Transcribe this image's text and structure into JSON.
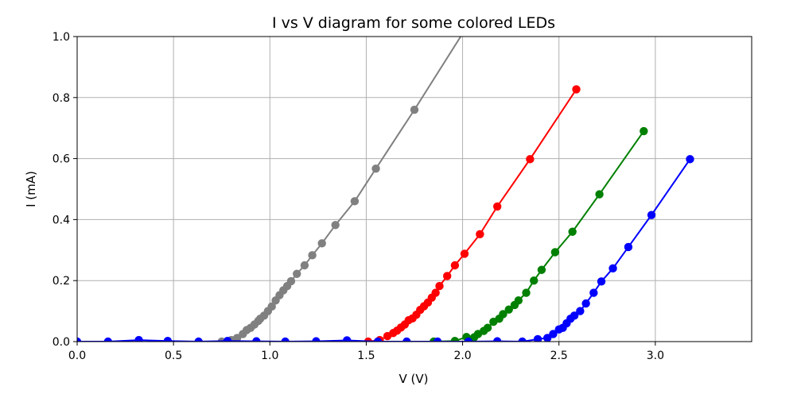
{
  "chart_data": {
    "type": "line",
    "title": "I vs V diagram for some colored LEDs",
    "xlabel": "V (V)",
    "ylabel": "I (mA)",
    "xlim": [
      0,
      3.5
    ],
    "ylim": [
      0,
      1.0
    ],
    "xticks": [
      0.0,
      0.5,
      1.0,
      1.5,
      2.0,
      2.5,
      3.0
    ],
    "yticks": [
      0.0,
      0.2,
      0.4,
      0.6,
      0.8,
      1.0
    ],
    "xtick_labels": [
      "0.0",
      "0.5",
      "1.0",
      "1.5",
      "2.0",
      "2.5",
      "3.0"
    ],
    "ytick_labels": [
      "0.0",
      "0.2",
      "0.4",
      "0.6",
      "0.8",
      "1.0"
    ],
    "grid": true,
    "legend": null,
    "series": [
      {
        "color": "#808080",
        "points": [
          [
            0.75,
            0.0
          ],
          [
            0.8,
            0.005
          ],
          [
            0.83,
            0.012
          ],
          [
            0.86,
            0.025
          ],
          [
            0.88,
            0.038
          ],
          [
            0.9,
            0.045
          ],
          [
            0.92,
            0.056
          ],
          [
            0.94,
            0.068
          ],
          [
            0.95,
            0.075
          ],
          [
            0.97,
            0.085
          ],
          [
            0.99,
            0.1
          ],
          [
            1.01,
            0.115
          ],
          [
            1.03,
            0.135
          ],
          [
            1.05,
            0.152
          ],
          [
            1.07,
            0.168
          ],
          [
            1.09,
            0.182
          ],
          [
            1.11,
            0.198
          ],
          [
            1.14,
            0.222
          ],
          [
            1.18,
            0.25
          ],
          [
            1.22,
            0.283
          ],
          [
            1.27,
            0.322
          ],
          [
            1.34,
            0.382
          ],
          [
            1.44,
            0.46
          ],
          [
            1.55,
            0.567
          ],
          [
            1.75,
            0.76
          ],
          [
            2.04,
            1.05
          ]
        ]
      },
      {
        "color": "#ff0000",
        "points": [
          [
            1.51,
            0.0
          ],
          [
            1.57,
            0.005
          ],
          [
            1.61,
            0.018
          ],
          [
            1.64,
            0.028
          ],
          [
            1.66,
            0.036
          ],
          [
            1.68,
            0.046
          ],
          [
            1.7,
            0.056
          ],
          [
            1.72,
            0.07
          ],
          [
            1.74,
            0.076
          ],
          [
            1.76,
            0.088
          ],
          [
            1.78,
            0.104
          ],
          [
            1.8,
            0.116
          ],
          [
            1.82,
            0.128
          ],
          [
            1.84,
            0.144
          ],
          [
            1.86,
            0.16
          ],
          [
            1.88,
            0.182
          ],
          [
            1.92,
            0.215
          ],
          [
            1.96,
            0.25
          ],
          [
            2.01,
            0.288
          ],
          [
            2.09,
            0.352
          ],
          [
            2.18,
            0.443
          ],
          [
            2.35,
            0.598
          ],
          [
            2.59,
            0.827
          ]
        ]
      },
      {
        "color": "#008000",
        "points": [
          [
            1.85,
            0.0
          ],
          [
            1.96,
            0.002
          ],
          [
            2.02,
            0.015
          ],
          [
            2.06,
            0.014
          ],
          [
            2.08,
            0.025
          ],
          [
            2.11,
            0.035
          ],
          [
            2.13,
            0.045
          ],
          [
            2.16,
            0.065
          ],
          [
            2.19,
            0.075
          ],
          [
            2.21,
            0.09
          ],
          [
            2.24,
            0.105
          ],
          [
            2.27,
            0.12
          ],
          [
            2.29,
            0.135
          ],
          [
            2.33,
            0.16
          ],
          [
            2.37,
            0.2
          ],
          [
            2.41,
            0.235
          ],
          [
            2.48,
            0.293
          ],
          [
            2.57,
            0.36
          ],
          [
            2.71,
            0.483
          ],
          [
            2.94,
            0.69
          ]
        ]
      },
      {
        "color": "#0000ff",
        "points": [
          [
            0.0,
            0.0
          ],
          [
            0.16,
            0.0
          ],
          [
            0.32,
            0.005
          ],
          [
            0.47,
            0.002
          ],
          [
            0.63,
            0.0
          ],
          [
            0.78,
            0.002
          ],
          [
            0.93,
            0.001
          ],
          [
            1.08,
            0.0
          ],
          [
            1.24,
            0.001
          ],
          [
            1.4,
            0.004
          ],
          [
            1.56,
            0.0
          ],
          [
            1.71,
            0.0
          ],
          [
            1.87,
            0.0
          ],
          [
            2.03,
            0.0
          ],
          [
            2.18,
            0.001
          ],
          [
            2.31,
            0.0
          ],
          [
            2.39,
            0.008
          ],
          [
            2.44,
            0.012
          ],
          [
            2.47,
            0.025
          ],
          [
            2.5,
            0.04
          ],
          [
            2.52,
            0.045
          ],
          [
            2.54,
            0.06
          ],
          [
            2.56,
            0.075
          ],
          [
            2.58,
            0.085
          ],
          [
            2.61,
            0.1
          ],
          [
            2.64,
            0.125
          ],
          [
            2.68,
            0.16
          ],
          [
            2.72,
            0.197
          ],
          [
            2.78,
            0.24
          ],
          [
            2.86,
            0.31
          ],
          [
            2.98,
            0.415
          ],
          [
            3.18,
            0.598
          ]
        ]
      }
    ]
  }
}
